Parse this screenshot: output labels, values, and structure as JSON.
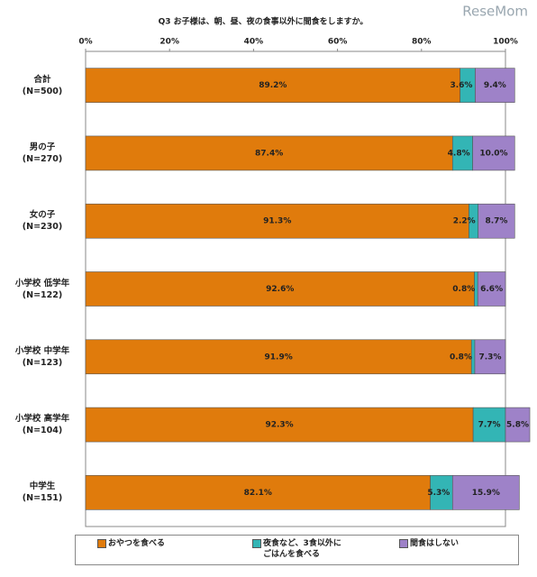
{
  "chart_data": {
    "type": "bar",
    "orientation": "horizontal",
    "stacked": true,
    "title": "Q3 お子様は、朝、昼、夜の食事以外に間食をしますか。",
    "watermark": "ReseMom",
    "categories": [
      [
        "合計",
        "(N=500)"
      ],
      [
        "男の子",
        "(N=270)"
      ],
      [
        "女の子",
        "(N=230)"
      ],
      [
        "小学校 低学年",
        "(N=122)"
      ],
      [
        "小学校 中学年",
        "(N=123)"
      ],
      [
        "小学校 高学年",
        "(N=104)"
      ],
      [
        "中学生",
        "(N=151)"
      ]
    ],
    "series": [
      {
        "name": "おやつを食べる",
        "color": "#e07b0c",
        "values": [
          89.2,
          87.4,
          91.3,
          92.6,
          91.9,
          92.3,
          82.1
        ],
        "value_labels": [
          "89.2%",
          "87.4%",
          "91.3%",
          "92.6%",
          "91.9%",
          "92.3%",
          "82.1%"
        ]
      },
      {
        "name": "夜食など、3食以外に\nごはんを食べる",
        "color": "#33b5b5",
        "values": [
          3.6,
          4.8,
          2.2,
          0.8,
          0.8,
          7.7,
          5.3
        ],
        "value_labels": [
          "3.6%",
          "4.8%",
          "2.2%",
          "0.8%",
          "0.8%",
          "7.7%",
          "5.3%"
        ]
      },
      {
        "name": "間食はしない",
        "color": "#9e82c8",
        "values": [
          9.4,
          10.0,
          8.7,
          6.6,
          7.3,
          5.8,
          15.9
        ],
        "value_labels": [
          "9.4%",
          "10.0%",
          "8.7%",
          "6.6%",
          "7.3%",
          "5.8%",
          "15.9%"
        ]
      }
    ],
    "xlim": [
      0,
      100
    ],
    "xticks": [
      {
        "value": 0,
        "label": "0%"
      },
      {
        "value": 20,
        "label": "20%"
      },
      {
        "value": 40,
        "label": "40%"
      },
      {
        "value": 60,
        "label": "60%"
      },
      {
        "value": 80,
        "label": "80%"
      },
      {
        "value": 100,
        "label": "100%"
      }
    ]
  }
}
